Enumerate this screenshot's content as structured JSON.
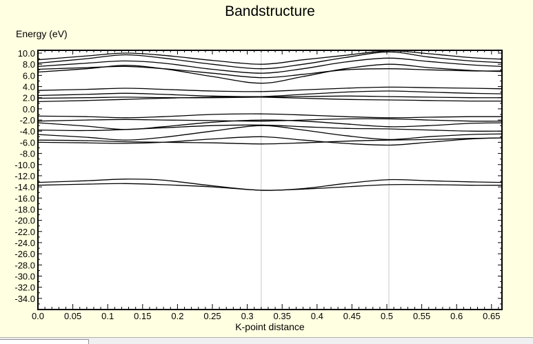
{
  "chart_data": {
    "type": "line",
    "title": "Bandstructure",
    "xlabel": "K-point distance",
    "ylabel": "Energy (eV)",
    "xlim": [
      0,
      0.665
    ],
    "ylim": [
      -36,
      10.5
    ],
    "x_ticks": [
      "0.0",
      "0.05",
      "0.1",
      "0.15",
      "0.2",
      "0.25",
      "0.3",
      "0.35",
      "0.4",
      "0.45",
      "0.5",
      "0.55",
      "0.6",
      "0.65"
    ],
    "y_ticks": [
      "10.0",
      "8.0",
      "6.0",
      "4.0",
      "2.0",
      "0.0",
      "-2.0",
      "-4.0",
      "-6.0",
      "-8.0",
      "-10.0",
      "-12.0",
      "-14.0",
      "-16.0",
      "-18.0",
      "-20.0",
      "-22.0",
      "-24.0",
      "-26.0",
      "-28.0",
      "-30.0",
      "-32.0",
      "-34.0"
    ],
    "high_symmetry_x": [
      0.32,
      0.503
    ],
    "grid": false,
    "x": [
      0.0,
      0.07,
      0.125,
      0.18,
      0.25,
      0.32,
      0.38,
      0.44,
      0.503,
      0.56,
      0.62,
      0.665
    ],
    "series": [
      {
        "values": [
          -13.2,
          -12.9,
          -12.6,
          -12.8,
          -13.8,
          -14.6,
          -14.3,
          -13.4,
          -12.7,
          -12.9,
          -13.1,
          -13.2
        ]
      },
      {
        "values": [
          -13.7,
          -13.5,
          -13.4,
          -13.6,
          -14.0,
          -14.6,
          -14.4,
          -14.0,
          -13.6,
          -13.6,
          -13.7,
          -13.7
        ]
      },
      {
        "values": [
          -6.0,
          -6.1,
          -6.2,
          -6.0,
          -5.4,
          -5.0,
          -5.6,
          -6.2,
          -6.5,
          -6.0,
          -5.4,
          -5.2
        ]
      },
      {
        "values": [
          -5.6,
          -5.7,
          -5.9,
          -6.0,
          -6.1,
          -6.3,
          -6.1,
          -5.8,
          -5.6,
          -5.5,
          -5.3,
          -5.2
        ]
      },
      {
        "values": [
          -4.6,
          -5.1,
          -5.6,
          -5.1,
          -4.0,
          -3.0,
          -3.8,
          -4.8,
          -5.5,
          -5.0,
          -4.6,
          -4.5
        ]
      },
      {
        "values": [
          -3.8,
          -3.9,
          -3.7,
          -3.4,
          -3.0,
          -2.9,
          -3.2,
          -3.5,
          -3.6,
          -3.8,
          -4.0,
          -4.0
        ]
      },
      {
        "values": [
          -2.5,
          -3.1,
          -3.7,
          -3.2,
          -2.4,
          -2.0,
          -2.2,
          -2.7,
          -3.2,
          -3.0,
          -2.6,
          -2.5
        ]
      },
      {
        "values": [
          -2.2,
          -2.0,
          -1.9,
          -2.0,
          -2.1,
          -2.2,
          -2.0,
          -1.8,
          -1.8,
          -2.0,
          -2.2,
          -2.2
        ]
      },
      {
        "values": [
          -1.3,
          -1.4,
          -1.6,
          -1.4,
          -1.0,
          -0.9,
          -1.1,
          -1.4,
          -1.6,
          -1.5,
          -1.4,
          -1.4
        ]
      },
      {
        "values": [
          1.3,
          1.5,
          1.7,
          1.9,
          2.1,
          2.1,
          1.9,
          1.7,
          1.6,
          1.5,
          1.4,
          1.4
        ]
      },
      {
        "values": [
          1.9,
          2.0,
          2.1,
          2.0,
          2.0,
          2.1,
          2.2,
          2.3,
          2.2,
          2.1,
          2.0,
          2.0
        ]
      },
      {
        "values": [
          2.4,
          2.6,
          2.8,
          2.6,
          2.3,
          2.2,
          2.6,
          3.0,
          3.2,
          3.0,
          2.8,
          2.7
        ]
      },
      {
        "values": [
          3.3,
          3.5,
          3.7,
          3.5,
          3.2,
          3.1,
          3.4,
          3.7,
          3.9,
          3.8,
          3.7,
          3.6
        ]
      },
      {
        "values": [
          6.6,
          7.2,
          7.8,
          7.2,
          5.8,
          4.6,
          5.8,
          7.2,
          8.0,
          7.4,
          6.9,
          6.7
        ]
      },
      {
        "values": [
          7.1,
          7.4,
          7.6,
          7.2,
          6.4,
          5.6,
          6.2,
          7.0,
          7.2,
          7.0,
          6.8,
          6.8
        ]
      },
      {
        "values": [
          7.6,
          8.2,
          8.6,
          8.2,
          7.1,
          6.4,
          7.2,
          8.4,
          9.1,
          8.5,
          7.9,
          7.6
        ]
      },
      {
        "values": [
          8.2,
          9.0,
          9.7,
          9.1,
          8.0,
          7.2,
          8.0,
          9.2,
          10.2,
          9.3,
          8.6,
          8.3
        ]
      },
      {
        "values": [
          8.8,
          9.5,
          10.0,
          9.6,
          8.7,
          8.0,
          8.8,
          9.6,
          10.4,
          9.9,
          9.2,
          8.9
        ]
      }
    ]
  }
}
